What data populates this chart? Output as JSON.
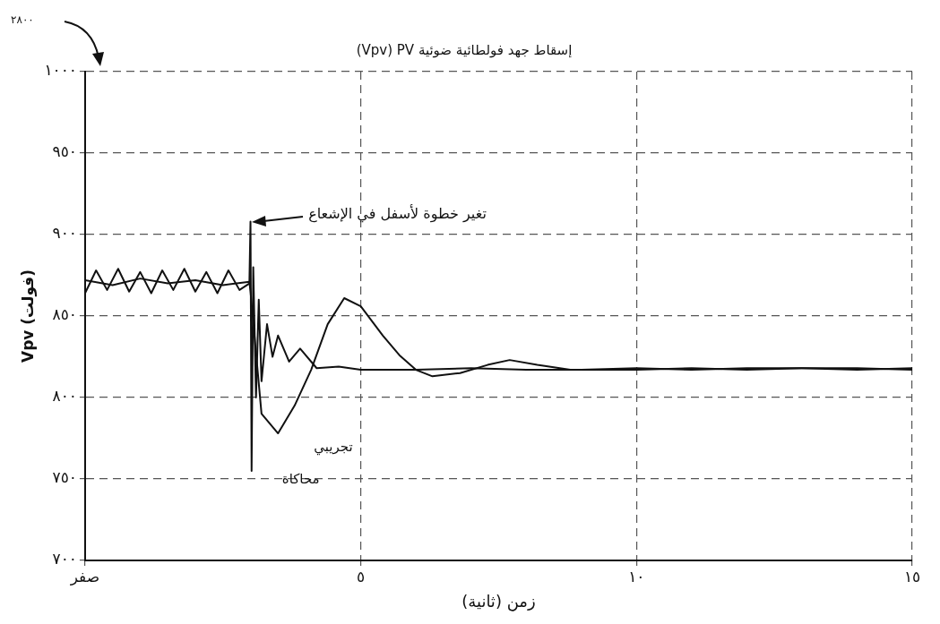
{
  "chart_data": {
    "type": "line",
    "title": "(Vpv) PV إسقاط جهد فولطائية ضوئية",
    "xlabel": "زمن (ثانية)",
    "ylabel": "Vpv (فولت)",
    "annotations": [
      "٢٨٠٠",
      "تغير خطوة لأسفل في الإشعاع"
    ],
    "xlim": [
      0,
      15
    ],
    "xticks": [
      {
        "value": 0,
        "label": "صفر"
      },
      {
        "value": 5,
        "label": "٥"
      },
      {
        "value": 10,
        "label": "١٠"
      },
      {
        "value": 15,
        "label": "١٥"
      }
    ],
    "ylim": [
      700,
      1000
    ],
    "yticks": [
      {
        "value": 700,
        "label": "٧٠٠"
      },
      {
        "value": 750,
        "label": "٧٥٠"
      },
      {
        "value": 800,
        "label": "٨٠٠"
      },
      {
        "value": 850,
        "label": "٨٥٠"
      },
      {
        "value": 900,
        "label": "٩٠٠"
      },
      {
        "value": 950,
        "label": "٩٥٠"
      },
      {
        "value": 1000,
        "label": "١٠٠٠"
      }
    ],
    "grid": true,
    "line_style": "solid",
    "marker": "none",
    "series": [
      {
        "name": "محاكاة",
        "color": "#111111",
        "x": [
          0,
          0.2,
          0.4,
          0.6,
          0.8,
          1.0,
          1.2,
          1.4,
          1.6,
          1.8,
          2.0,
          2.2,
          2.4,
          2.6,
          2.8,
          2.98,
          3.0,
          3.02,
          3.05,
          3.1,
          3.15,
          3.2,
          3.3,
          3.4,
          3.5,
          3.7,
          3.9,
          4.2,
          4.6,
          5,
          6,
          7,
          8,
          9,
          10,
          11,
          12,
          13,
          14,
          15
        ],
        "values": [
          864,
          878,
          866,
          879,
          865,
          877,
          864,
          878,
          866,
          879,
          865,
          877,
          864,
          878,
          866,
          870,
          908,
          755,
          880,
          800,
          860,
          810,
          845,
          825,
          838,
          822,
          830,
          818,
          819,
          817,
          817,
          818,
          817,
          817,
          818,
          817,
          818,
          818,
          817,
          818
        ]
      },
      {
        "name": "تجريبي",
        "color": "#111111",
        "x": [
          0,
          0.5,
          1,
          1.5,
          2,
          2.5,
          2.98,
          3.0,
          3.2,
          3.5,
          3.8,
          4.1,
          4.4,
          4.7,
          5.0,
          5.4,
          5.7,
          6.0,
          6.3,
          6.8,
          7.3,
          7.7,
          8.2,
          8.8,
          10,
          11,
          12,
          13,
          14,
          15
        ],
        "values": [
          872,
          869,
          873,
          870,
          872,
          869,
          871,
          865,
          790,
          778,
          795,
          817,
          845,
          861,
          856,
          838,
          826,
          817,
          813,
          815,
          820,
          823,
          820,
          817,
          817,
          818,
          817,
          818,
          818,
          817
        ]
      }
    ]
  }
}
